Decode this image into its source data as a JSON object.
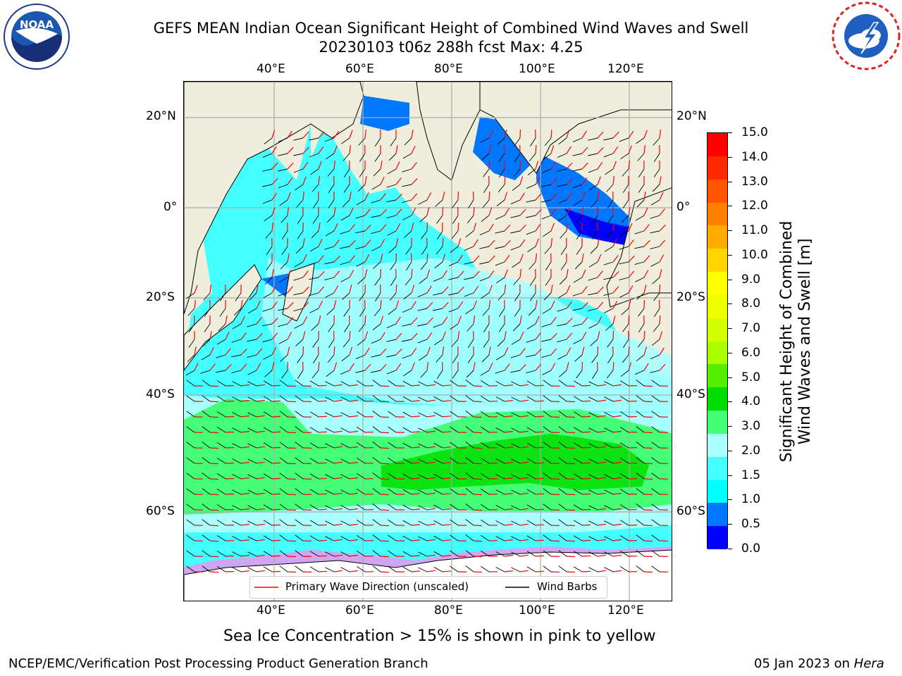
{
  "title": {
    "line1": "GEFS MEAN Indian Ocean Significant Height of Combined Wind Waves and Swell",
    "line2": "20230103 t06z 288h fcst   Max: 4.25"
  },
  "logos": {
    "noaa_text": "NOAA",
    "noaa_ring": "NATIONAL OCEANIC AND ATMOSPHERIC ADMINISTRATION · U.S. DEPARTMENT OF COMMERCE",
    "nws_ring": "NATIONAL WEATHER SERVICE"
  },
  "map": {
    "lon_ticks_top": [
      "40°E",
      "60°E",
      "80°E",
      "100°E",
      "120°E"
    ],
    "lon_ticks_bottom": [
      "40°E",
      "60°E",
      "80°E",
      "100°E",
      "120°E"
    ],
    "lat_ticks_left": [
      "20°N",
      "0°",
      "20°S",
      "40°S",
      "60°S"
    ],
    "lat_ticks_right": [
      "20°N",
      "0°",
      "20°S",
      "40°S",
      "60°S"
    ],
    "legend": {
      "wave_dir": "Primary Wave Direction (unscaled)",
      "wind_barbs": "Wind Barbs",
      "wave_color": "#ff0000",
      "barb_color": "#000000"
    },
    "land_color": "#efeedd"
  },
  "colorbar": {
    "label_line1": "Significant Height of Combined",
    "label_line2": "Wind Waves and Swell [m]",
    "ticks": [
      "15.0",
      "14.0",
      "13.0",
      "12.0",
      "11.0",
      "10.0",
      "9.0",
      "8.0",
      "7.0",
      "6.0",
      "5.0",
      "4.0",
      "3.0",
      "2.0",
      "1.5",
      "1.0",
      "0.5",
      "0.0"
    ],
    "colors_top_to_bottom": [
      "#ff0000",
      "#ff2a00",
      "#ff5500",
      "#ff8000",
      "#ffaa00",
      "#ffd500",
      "#ffff00",
      "#eeff00",
      "#d4ff00",
      "#aaff00",
      "#55ee00",
      "#00dd00",
      "#44ff77",
      "#aaffff",
      "#44ffff",
      "#00ffff",
      "#0077ff",
      "#0000ff"
    ]
  },
  "caption": "Sea Ice Concentration > 15% is shown in pink to yellow",
  "footer": {
    "left": "NCEP/EMC/Verification Post Processing Product Generation Branch",
    "right_date": "05 Jan 2023 on ",
    "right_machine": "Hera"
  }
}
